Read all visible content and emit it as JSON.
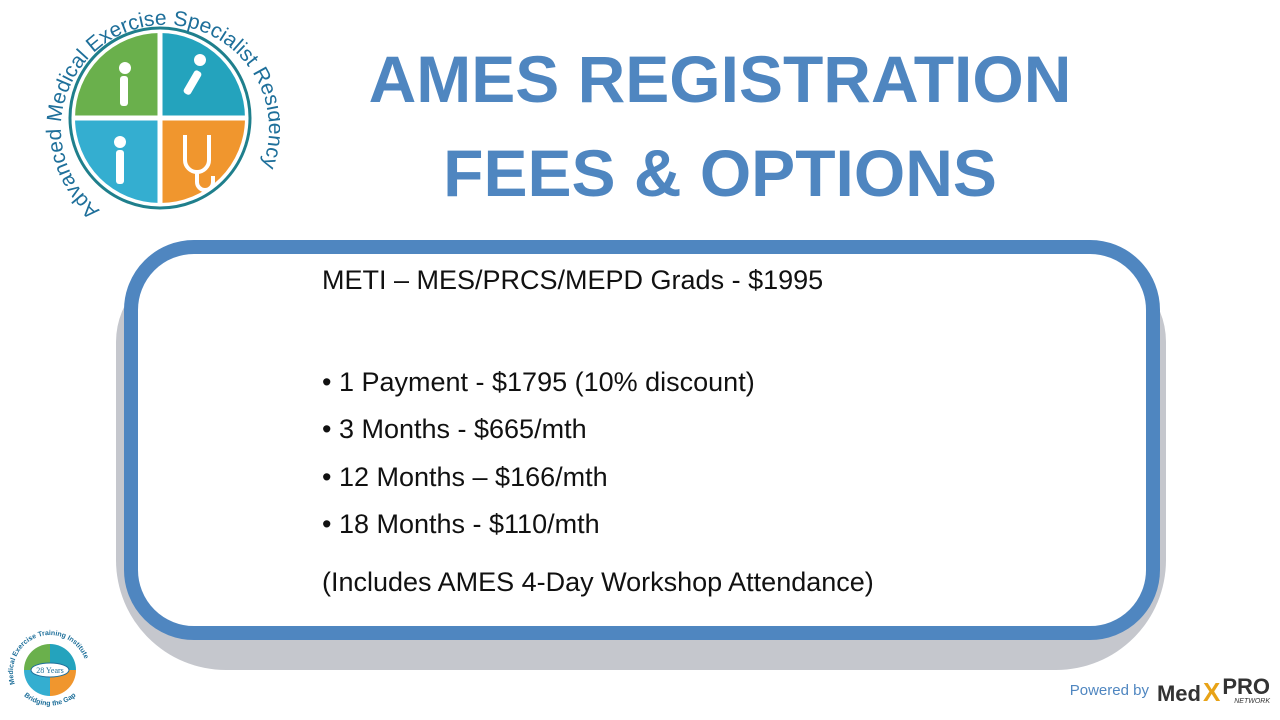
{
  "logo": {
    "ring_text": "Advanced Medical Exercise Specialist Residency",
    "colors": [
      "#6ab04c",
      "#2ba5c4",
      "#2ba5c4",
      "#f0962e"
    ]
  },
  "title": {
    "line1": "AMES REGISTRATION",
    "line2": "FEES & OPTIONS",
    "color": "#4f86c0"
  },
  "content": {
    "heading": "METI – MES/PRCS/MEPD Grads - $1995",
    "options": [
      "• 1 Payment - $1795 (10% discount)",
      "• 3 Months - $665/mth",
      "• 12 Months – $166/mth",
      "• 18 Months - $110/mth"
    ],
    "note": "(Includes AMES 4-Day Workshop Attendance)"
  },
  "footer": {
    "meti_logo_text": "Medical Exercise Training Institute",
    "meti_years": "28 Years",
    "meti_tagline": "Bridging the Gap",
    "powered_by": "Powered by",
    "brand_med": "Med",
    "brand_x": "X",
    "brand_pro": "PRO",
    "brand_network": "NETWORK"
  }
}
